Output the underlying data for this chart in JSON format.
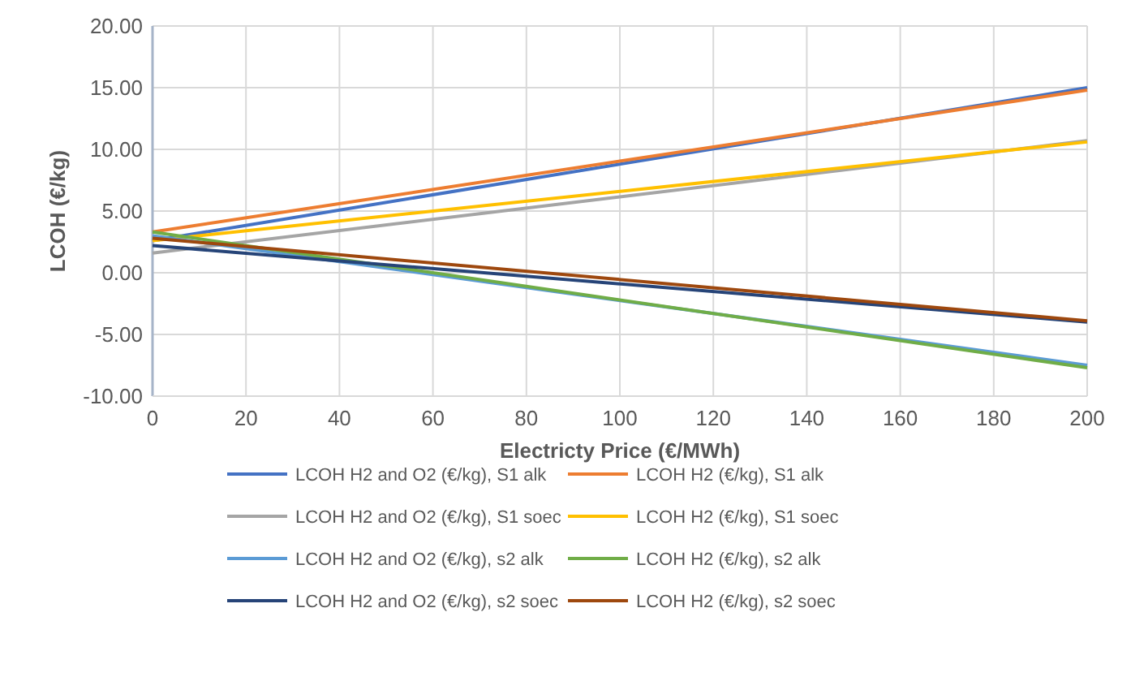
{
  "chart_data": {
    "type": "line",
    "xlabel": "Electricty Price (€/MWh)",
    "ylabel": "LCOH (€/kg)",
    "x": [
      0,
      200
    ],
    "xlim": [
      0,
      200
    ],
    "xticks": [
      0,
      20,
      40,
      60,
      80,
      100,
      120,
      140,
      160,
      180,
      200
    ],
    "ylim": [
      -10,
      20
    ],
    "yticks": [
      {
        "value": -10,
        "label": "-10.00"
      },
      {
        "value": -5,
        "label": "-5.00"
      },
      {
        "value": 0,
        "label": "0.00"
      },
      {
        "value": 5,
        "label": "5.00"
      },
      {
        "value": 10,
        "label": "10.00"
      },
      {
        "value": 15,
        "label": "15.00"
      },
      {
        "value": 20,
        "label": "20.00"
      }
    ],
    "grid": true,
    "legend": "bottom",
    "marker": "none",
    "series": [
      {
        "name": "LCOH H2 and O2 (€/kg), S1 alk",
        "color": "#4472c4",
        "values": [
          2.6,
          15.0
        ]
      },
      {
        "name": "LCOH H2 (€/kg), S1 alk",
        "color": "#ed7d31",
        "values": [
          3.3,
          14.8
        ]
      },
      {
        "name": "LCOH H2 and O2 (€/kg), S1 soec",
        "color": "#a5a5a5",
        "values": [
          1.6,
          10.7
        ]
      },
      {
        "name": "LCOH H2 (€/kg), S1 soec",
        "color": "#ffc000",
        "values": [
          2.6,
          10.6
        ]
      },
      {
        "name": "LCOH H2 and O2 (€/kg), s2 alk",
        "color": "#5b9bd5",
        "values": [
          3.0,
          -7.5
        ]
      },
      {
        "name": "LCOH H2 (€/kg), s2 alk",
        "color": "#70ad47",
        "values": [
          3.3,
          -7.7
        ]
      },
      {
        "name": "LCOH H2 and O2 (€/kg), s2 soec",
        "color": "#264478",
        "values": [
          2.2,
          -4.0
        ]
      },
      {
        "name": "LCOH H2 (€/kg), s2 soec",
        "color": "#9e480e",
        "values": [
          2.8,
          -3.9
        ]
      }
    ]
  }
}
